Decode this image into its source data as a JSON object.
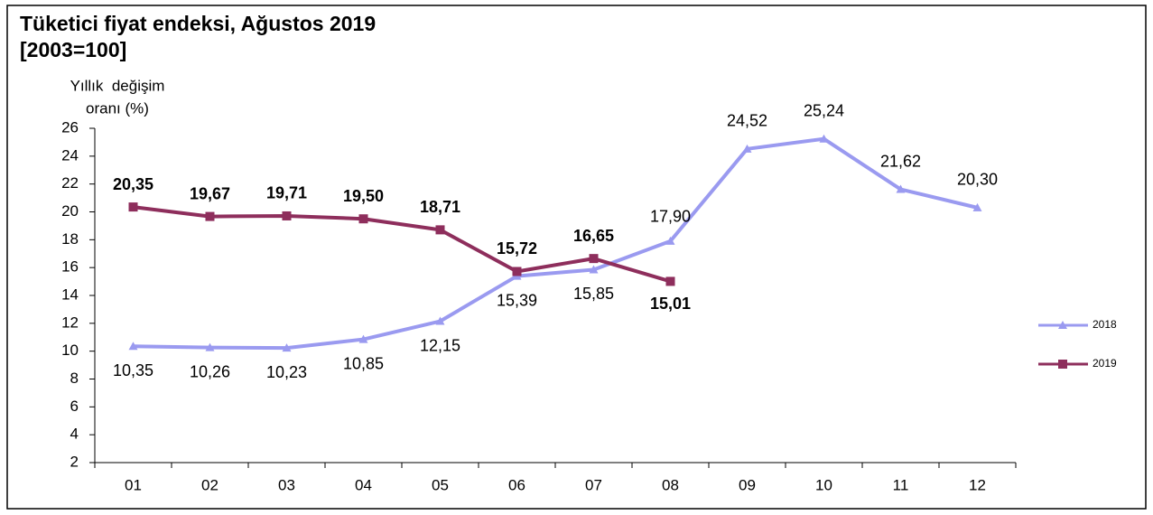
{
  "chart_data": {
    "type": "line",
    "title": "Tüketici fiyat endeksi, Ağustos 2019",
    "subtitle": "[2003=100]",
    "ylabel": [
      "Yıllık  değişim",
      "oranı (%)"
    ],
    "categories": [
      "01",
      "02",
      "03",
      "04",
      "05",
      "06",
      "07",
      "08",
      "09",
      "10",
      "11",
      "12"
    ],
    "series": [
      {
        "name": "2018",
        "color": "#9a9af0",
        "marker": "triangle",
        "values": [
          10.35,
          10.26,
          10.23,
          10.85,
          12.15,
          15.39,
          15.85,
          17.9,
          24.52,
          25.24,
          21.62,
          20.3
        ],
        "value_labels": [
          "10,35",
          "10,26",
          "10,23",
          "10,85",
          "12,15",
          "15,39",
          "15,85",
          "17,90",
          "24,52",
          "25,24",
          "21,62",
          "20,30"
        ]
      },
      {
        "name": "2019",
        "color": "#8e2e5c",
        "marker": "square",
        "values": [
          20.35,
          19.67,
          19.71,
          19.5,
          18.71,
          15.72,
          16.65,
          15.01,
          null,
          null,
          null,
          null
        ],
        "value_labels": [
          "20,35",
          "19,67",
          "19,71",
          "19,50",
          "18,71",
          "15,72",
          "16,65",
          "15,01",
          null,
          null,
          null,
          null
        ]
      }
    ],
    "ylim": [
      2,
      26
    ],
    "yticks": [
      2,
      4,
      6,
      8,
      10,
      12,
      14,
      16,
      18,
      20,
      22,
      24,
      26
    ],
    "legend": "right"
  }
}
